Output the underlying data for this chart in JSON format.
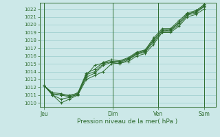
{
  "title": "",
  "xlabel": "Pression niveau de la mer( hPa )",
  "bg_color": "#cce8e8",
  "grid_color": "#99cccc",
  "line_color": "#2d6b2d",
  "ylim": [
    1009.5,
    1022.8
  ],
  "yticks": [
    1010,
    1011,
    1012,
    1013,
    1014,
    1015,
    1016,
    1017,
    1018,
    1019,
    1020,
    1021,
    1022
  ],
  "xtick_labels": [
    "Jeu",
    "Dim",
    "Ven",
    "Sam"
  ],
  "xtick_positions": [
    0.0,
    3.0,
    5.0,
    7.0
  ],
  "xlim": [
    -0.2,
    7.5
  ],
  "lines": [
    [
      1012.2,
      1011.1,
      1011.0,
      1010.8,
      1011.1,
      1013.3,
      1013.8,
      1014.8,
      1015.2,
      1015.0,
      1015.5,
      1016.2,
      1016.5,
      1017.8,
      1019.0,
      1019.2,
      1020.0,
      1021.2,
      1021.5,
      1022.3
    ],
    [
      1012.2,
      1011.0,
      1010.0,
      1010.5,
      1011.0,
      1013.0,
      1013.5,
      1014.0,
      1015.0,
      1015.1,
      1015.3,
      1016.0,
      1016.3,
      1017.5,
      1019.0,
      1019.0,
      1019.8,
      1021.0,
      1021.3,
      1022.0
    ],
    [
      1012.2,
      1011.2,
      1011.0,
      1011.0,
      1011.2,
      1013.6,
      1014.0,
      1015.0,
      1015.3,
      1015.2,
      1015.6,
      1016.3,
      1016.6,
      1018.0,
      1019.2,
      1019.3,
      1020.2,
      1021.4,
      1021.6,
      1022.4
    ],
    [
      1012.2,
      1011.3,
      1011.2,
      1010.9,
      1011.3,
      1013.8,
      1014.3,
      1015.2,
      1015.5,
      1015.4,
      1015.8,
      1016.5,
      1016.8,
      1018.3,
      1019.5,
      1019.5,
      1020.5,
      1021.5,
      1021.8,
      1022.5
    ],
    [
      1012.2,
      1011.0,
      1010.5,
      1010.7,
      1011.1,
      1013.5,
      1014.8,
      1015.1,
      1015.3,
      1015.3,
      1015.7,
      1016.4,
      1016.7,
      1018.1,
      1019.3,
      1019.4,
      1020.3,
      1021.3,
      1021.7,
      1022.6
    ]
  ],
  "num_points": 20,
  "x_total": 7.0
}
